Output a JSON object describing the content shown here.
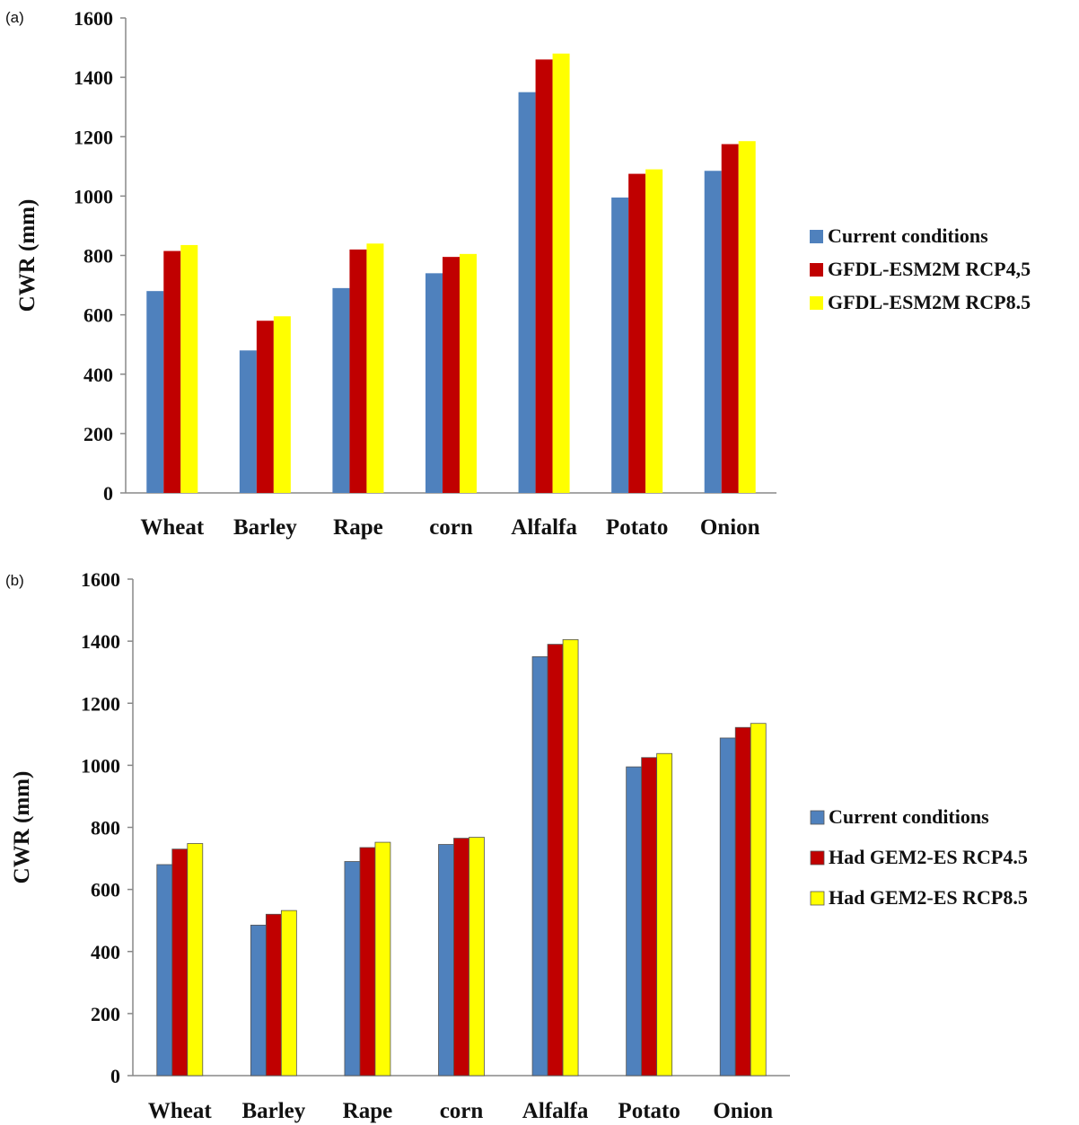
{
  "chart_data": [
    {
      "type": "bar",
      "panel_label": "(a)",
      "categories": [
        "Wheat",
        "Barley",
        "Rape",
        "corn",
        "Alfalfa",
        "Potato",
        "Onion"
      ],
      "ylabel": "CWR (mm)",
      "xlabel": "",
      "ylim": [
        0,
        1600
      ],
      "yticks": [
        0,
        200,
        400,
        600,
        800,
        1000,
        1200,
        1400,
        1600
      ],
      "grid": false,
      "legend_position": "right",
      "series": [
        {
          "name": "Current conditions",
          "color": "#4f81bd",
          "values": [
            680,
            480,
            690,
            740,
            1350,
            995,
            1085
          ]
        },
        {
          "name": "GFDL-ESM2M RCP4,5",
          "color": "#c00000",
          "values": [
            815,
            580,
            820,
            795,
            1460,
            1075,
            1175
          ]
        },
        {
          "name": "GFDL-ESM2M RCP8.5",
          "color": "#ffff00",
          "values": [
            835,
            595,
            840,
            805,
            1480,
            1090,
            1185
          ]
        }
      ]
    },
    {
      "type": "bar",
      "panel_label": "(b)",
      "categories": [
        "Wheat",
        "Barley",
        "Rape",
        "corn",
        "Alfalfa",
        "Potato",
        "Onion"
      ],
      "ylabel": "CWR (mm)",
      "xlabel": "",
      "ylim": [
        0,
        1600
      ],
      "yticks": [
        0,
        200,
        400,
        600,
        800,
        1000,
        1200,
        1400,
        1600
      ],
      "grid": false,
      "legend_position": "right",
      "series": [
        {
          "name": "Current conditions",
          "color": "#4f81bd",
          "values": [
            680,
            485,
            690,
            745,
            1350,
            995,
            1088
          ]
        },
        {
          "name": "Had GEM2-ES RCP4.5",
          "color": "#c00000",
          "values": [
            730,
            520,
            735,
            765,
            1390,
            1025,
            1122
          ]
        },
        {
          "name": "Had GEM2-ES RCP8.5",
          "color": "#ffff00",
          "values": [
            748,
            532,
            752,
            768,
            1405,
            1038,
            1135
          ]
        }
      ]
    }
  ]
}
